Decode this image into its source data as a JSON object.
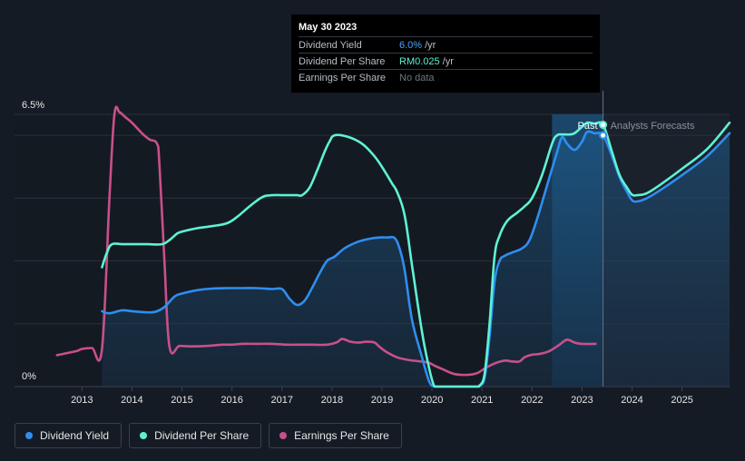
{
  "tooltip": {
    "date": "May 30 2023",
    "rows": [
      {
        "name": "Dividend Yield",
        "value": "6.0%",
        "unit": "/yr",
        "color": "#4fa3f7"
      },
      {
        "name": "Dividend Per Share",
        "value": "RM0.025",
        "unit": "/yr",
        "color": "#5ef2d4"
      },
      {
        "name": "Earnings Per Share",
        "value": "No data",
        "unit": "",
        "color": "#6f7680"
      }
    ]
  },
  "legend": [
    {
      "label": "Dividend Yield",
      "color": "#2e8ef0"
    },
    {
      "label": "Dividend Per Share",
      "color": "#5ef2d4"
    },
    {
      "label": "Earnings Per Share",
      "color": "#c8508a"
    }
  ],
  "chart_data": {
    "type": "line",
    "title": "",
    "xlabel": "",
    "ylabel": "",
    "xlim": [
      2012.45,
      2025.95
    ],
    "ylim": [
      0,
      6.5
    ],
    "y_tick_labels": [
      "0%",
      "6.5%"
    ],
    "x_ticks": [
      2013,
      2014,
      2015,
      2016,
      2017,
      2018,
      2019,
      2020,
      2021,
      2022,
      2023,
      2024,
      2025
    ],
    "past_label": "Past",
    "forecast_label": "Analysts Forecasts",
    "forecast_start": 2023.42,
    "highlight_start": 2022.4,
    "marker_x": 2023.42,
    "series": [
      {
        "name": "Dividend Yield",
        "color": "#2e8ef0",
        "fill": true,
        "x": [
          2013.4,
          2013.55,
          2013.8,
          2014.0,
          2014.2,
          2014.45,
          2014.65,
          2014.85,
          2015.0,
          2015.3,
          2015.6,
          2015.9,
          2016.2,
          2016.5,
          2016.8,
          2017.0,
          2017.15,
          2017.3,
          2017.45,
          2017.6,
          2017.75,
          2017.9,
          2018.05,
          2018.25,
          2018.5,
          2018.75,
          2018.95,
          2019.1,
          2019.25,
          2019.35,
          2019.45,
          2019.6,
          2019.8,
          2019.95,
          2020.05,
          2020.15,
          2020.5,
          2020.9,
          2020.95,
          2021.05,
          2021.15,
          2021.25,
          2021.35,
          2021.45,
          2021.6,
          2021.8,
          2021.95,
          2022.1,
          2022.3,
          2022.5,
          2022.6,
          2022.7,
          2022.85,
          2023.0,
          2023.1,
          2023.25,
          2023.42,
          2023.6,
          2023.75,
          2023.9,
          2024.0,
          2024.1,
          2024.3,
          2024.6,
          2025.0,
          2025.5,
          2025.95
        ],
        "y": [
          1.8,
          1.75,
          1.82,
          1.8,
          1.78,
          1.78,
          1.9,
          2.15,
          2.22,
          2.3,
          2.34,
          2.35,
          2.35,
          2.35,
          2.33,
          2.33,
          2.1,
          1.95,
          2.05,
          2.35,
          2.7,
          3.0,
          3.1,
          3.3,
          3.45,
          3.53,
          3.56,
          3.56,
          3.55,
          3.3,
          2.8,
          1.6,
          0.7,
          0.1,
          0.0,
          0.0,
          0.0,
          0.0,
          0.02,
          0.2,
          1.2,
          2.5,
          3.0,
          3.12,
          3.2,
          3.3,
          3.5,
          4.0,
          4.8,
          5.6,
          5.95,
          5.8,
          5.65,
          5.85,
          6.08,
          6.05,
          6.0,
          5.5,
          5.0,
          4.65,
          4.45,
          4.42,
          4.5,
          4.72,
          5.05,
          5.5,
          6.05
        ]
      },
      {
        "name": "Dividend Per Share",
        "color": "#5ef2d4",
        "fill": false,
        "x": [
          2013.4,
          2013.5,
          2013.6,
          2013.8,
          2014.0,
          2014.3,
          2014.6,
          2014.75,
          2014.9,
          2015.0,
          2015.3,
          2015.6,
          2015.9,
          2016.1,
          2016.35,
          2016.6,
          2016.8,
          2017.1,
          2017.3,
          2017.4,
          2017.55,
          2017.7,
          2017.85,
          2017.95,
          2018.05,
          2018.3,
          2018.6,
          2018.85,
          2019.05,
          2019.2,
          2019.3,
          2019.45,
          2019.6,
          2019.8,
          2019.95,
          2020.05,
          2020.15,
          2020.5,
          2020.9,
          2020.95,
          2021.05,
          2021.15,
          2021.25,
          2021.35,
          2021.5,
          2021.7,
          2021.85,
          2022.0,
          2022.2,
          2022.4,
          2022.5,
          2022.6,
          2022.75,
          2022.85,
          2023.0,
          2023.1,
          2023.25,
          2023.42,
          2023.6,
          2023.75,
          2023.9,
          2024.0,
          2024.1,
          2024.3,
          2024.6,
          2025.0,
          2025.5,
          2025.95
        ],
        "y": [
          2.85,
          3.2,
          3.4,
          3.4,
          3.4,
          3.4,
          3.4,
          3.5,
          3.65,
          3.7,
          3.78,
          3.83,
          3.9,
          4.05,
          4.3,
          4.52,
          4.57,
          4.57,
          4.57,
          4.57,
          4.75,
          5.15,
          5.6,
          5.85,
          6.0,
          5.97,
          5.8,
          5.5,
          5.15,
          4.85,
          4.65,
          4.1,
          2.9,
          1.3,
          0.4,
          0.0,
          0.0,
          0.0,
          0.0,
          0.02,
          0.3,
          1.5,
          3.1,
          3.6,
          3.95,
          4.15,
          4.3,
          4.5,
          5.05,
          5.8,
          6.0,
          6.02,
          6.02,
          6.05,
          6.2,
          6.3,
          6.28,
          6.25,
          5.6,
          5.05,
          4.75,
          4.58,
          4.57,
          4.62,
          4.85,
          5.2,
          5.67,
          6.3
        ]
      },
      {
        "name": "Earnings Per Share",
        "color": "#c8508a",
        "fill": false,
        "x": [
          2012.5,
          2012.7,
          2012.9,
          2013.0,
          2013.2,
          2013.4,
          2013.55,
          2013.65,
          2013.75,
          2013.85,
          2014.0,
          2014.2,
          2014.35,
          2014.5,
          2014.55,
          2014.65,
          2014.75,
          2014.95,
          2015.2,
          2015.5,
          2015.8,
          2016.0,
          2016.2,
          2016.5,
          2016.8,
          2017.1,
          2017.4,
          2017.6,
          2017.9,
          2018.1,
          2018.2,
          2018.35,
          2018.5,
          2018.7,
          2018.85,
          2018.95,
          2019.1,
          2019.3,
          2019.55,
          2019.9,
          2020.05,
          2020.2,
          2020.45,
          2020.7,
          2020.9,
          2021.05,
          2021.25,
          2021.45,
          2021.6,
          2021.75,
          2021.85,
          2022.0,
          2022.15,
          2022.35,
          2022.55,
          2022.7,
          2022.85,
          2023.0,
          2023.27
        ],
        "y": [
          0.75,
          0.8,
          0.85,
          0.9,
          0.92,
          0.9,
          4.5,
          6.5,
          6.55,
          6.45,
          6.3,
          6.05,
          5.9,
          5.8,
          5.3,
          3.0,
          0.95,
          0.97,
          0.96,
          0.97,
          1.0,
          1.0,
          1.02,
          1.02,
          1.02,
          1.0,
          1.0,
          1.0,
          1.0,
          1.06,
          1.14,
          1.08,
          1.05,
          1.07,
          1.05,
          0.95,
          0.82,
          0.7,
          0.63,
          0.58,
          0.5,
          0.42,
          0.3,
          0.28,
          0.32,
          0.43,
          0.55,
          0.62,
          0.6,
          0.6,
          0.7,
          0.76,
          0.78,
          0.85,
          1.0,
          1.12,
          1.05,
          1.02,
          1.02
        ]
      }
    ]
  }
}
